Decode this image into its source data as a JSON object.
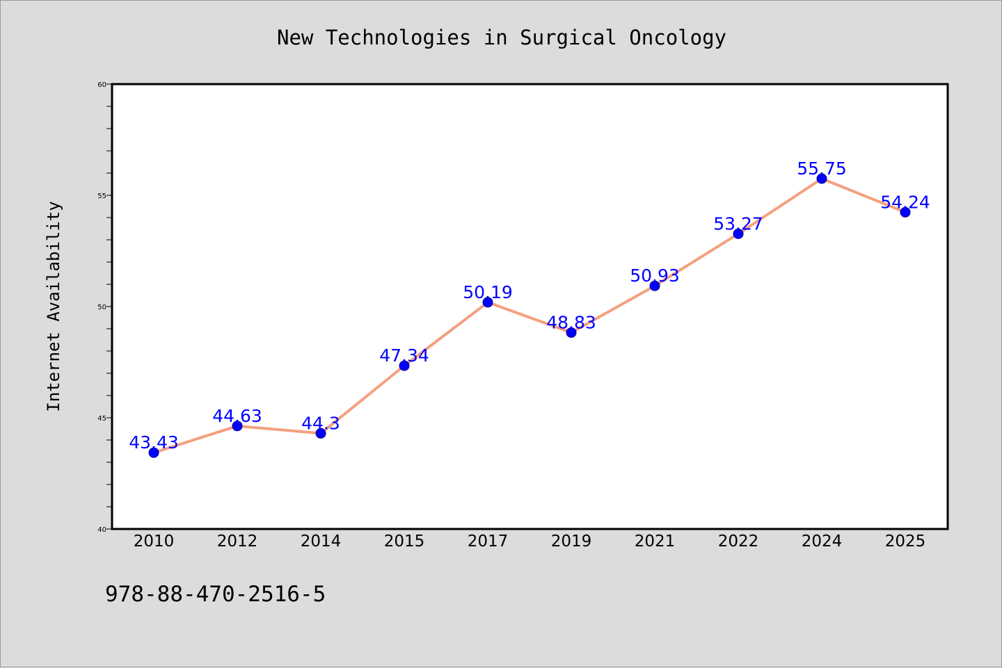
{
  "chart_data": {
    "type": "line",
    "title": "New Technologies in Surgical Oncology",
    "xlabel": "",
    "ylabel": "Internet Availability",
    "categories": [
      "2010",
      "2012",
      "2014",
      "2015",
      "2017",
      "2019",
      "2021",
      "2022",
      "2024",
      "2025"
    ],
    "values": [
      43.43,
      44.63,
      44.3,
      47.34,
      50.19,
      48.83,
      50.93,
      53.27,
      55.75,
      54.24
    ],
    "data_labels": [
      "43.43",
      "44.63",
      "44.3",
      "47.34",
      "50.19",
      "48.83",
      "50.93",
      "53.27",
      "55.75",
      "54.24"
    ],
    "ylim": [
      40,
      60
    ],
    "yticks": [
      "40",
      "45",
      "50",
      "55",
      "60"
    ],
    "grid": false,
    "colors": {
      "line": "#f4a07f",
      "marker": "#0000ff",
      "label": "#0000ff"
    }
  },
  "footer": {
    "code": "978-88-470-2516-5"
  }
}
